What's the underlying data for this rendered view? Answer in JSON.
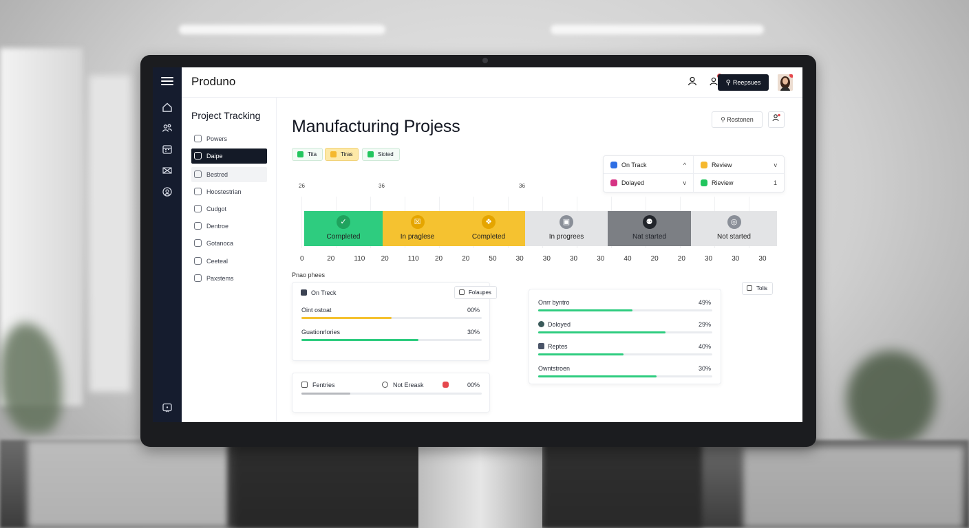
{
  "app": {
    "brand": "Produno"
  },
  "topbar": {
    "primary_button": "Reepsues",
    "icons": [
      "user-icon",
      "notification-user-icon",
      "search-icon"
    ]
  },
  "rail": {
    "icons": [
      "menu-icon",
      "home-icon",
      "team-icon",
      "calendar-icon",
      "mail-icon",
      "profile-icon",
      "help-icon"
    ]
  },
  "sidebar": {
    "title": "Project Tracking",
    "items": [
      {
        "label": "Powers"
      },
      {
        "label": "Daipe"
      },
      {
        "label": "Bestred"
      },
      {
        "label": "Hoostestrian"
      },
      {
        "label": "Cudgot"
      },
      {
        "label": "Dentroe"
      },
      {
        "label": "Gotanoca"
      },
      {
        "label": "Ceeteal"
      },
      {
        "label": "Paxstems"
      }
    ]
  },
  "main": {
    "title": "Manufacturing Projess",
    "search_button": "Rostonen",
    "filter_chips": [
      {
        "label": "Tita",
        "color": "#22c55e"
      },
      {
        "label": "Tiras",
        "color": "#f5b82e"
      },
      {
        "label": "Sioted",
        "color": "#22c55e"
      }
    ],
    "legend": [
      {
        "label": "On Track",
        "color": "#2f6fe4"
      },
      {
        "label": "Review",
        "color": "#f5b82e"
      },
      {
        "label": "Dolayed",
        "color": "#d63384"
      },
      {
        "label": "Rieview",
        "color": "#22c55e"
      }
    ],
    "legend_chevrons": [
      "^",
      "v",
      "v",
      "1"
    ]
  },
  "chart_data": {
    "type": "bar",
    "top_ticks": [
      "26",
      "36",
      "36"
    ],
    "bottom_ticks": [
      "0",
      "20",
      "110",
      "20",
      "110",
      "20",
      "20",
      "50",
      "30",
      "30",
      "30",
      "30",
      "40",
      "20",
      "20",
      "30",
      "30",
      "30"
    ],
    "segments": [
      {
        "label": "Completed",
        "text": "Cornpleted",
        "color": "#2ecc7f",
        "badge": "check-icon",
        "badge_color": "#1fa35e"
      },
      {
        "label": "In progress",
        "text": "In praglese",
        "color": "#f5c230",
        "badge": "clipboard-icon",
        "badge_color": "#e5a500"
      },
      {
        "label": "Completed",
        "text": "Completed",
        "color": "#f5c230",
        "badge": "puzzle-icon",
        "badge_color": "#e5a500"
      },
      {
        "label": "In progress",
        "text": "In progrees",
        "color": "#e3e4e6",
        "badge": "image-icon",
        "badge_color": "#8a8f98"
      },
      {
        "label": "Not started",
        "text": "Nat started",
        "color": "#7c7f84",
        "badge": "people-icon",
        "badge_color": "#22252b"
      },
      {
        "label": "Not started",
        "text": "Not started",
        "color": "#e3e4e6",
        "badge": "target-icon",
        "badge_color": "#8a8f98"
      }
    ]
  },
  "phases": {
    "label": "Pnao phees",
    "tag_left": "Folaupes",
    "tag_right": "Tolis",
    "card_left": {
      "header": "On Treck",
      "rows": [
        {
          "label": "Oint ostoat",
          "value": "00%",
          "fraction": 0.5,
          "color": "#f5c230"
        },
        {
          "label": "Guationrlories",
          "value": "30%",
          "fraction": 0.65,
          "color": "#2ecc7f"
        }
      ]
    },
    "card_bottom": {
      "label1": "Fentries",
      "label2": "Not Ereask",
      "value": "00%",
      "fraction": 0.27,
      "color": "#b7b9be"
    },
    "card_right": {
      "rows": [
        {
          "label": "Onrr byntro",
          "value": "49%",
          "fraction": 0.54
        },
        {
          "label": "Doloyed",
          "value": "29%",
          "fraction": 0.73
        },
        {
          "label": "Reptes",
          "value": "40%",
          "fraction": 0.49
        },
        {
          "label": "Owntstroen",
          "value": "30%",
          "fraction": 0.68
        }
      ],
      "color": "#2ecc7f"
    }
  }
}
